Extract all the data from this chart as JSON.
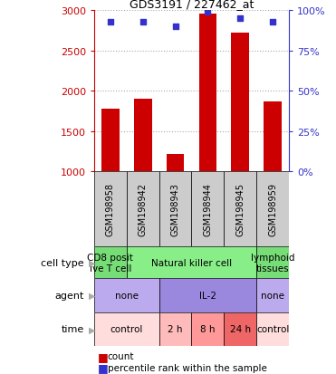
{
  "title": "GDS3191 / 227462_at",
  "samples": [
    "GSM198958",
    "GSM198942",
    "GSM198943",
    "GSM198944",
    "GSM198945",
    "GSM198959"
  ],
  "counts": [
    1780,
    1900,
    1220,
    2960,
    2720,
    1870
  ],
  "percentile_ranks": [
    93,
    93,
    90,
    99,
    95,
    93
  ],
  "ylim_left": [
    1000,
    3000
  ],
  "ylim_right": [
    0,
    100
  ],
  "yticks_left": [
    1000,
    1500,
    2000,
    2500,
    3000
  ],
  "yticks_right": [
    0,
    25,
    50,
    75,
    100
  ],
  "bar_color": "#cc0000",
  "dot_color": "#3333cc",
  "bar_width": 0.55,
  "sample_box_color": "#cccccc",
  "cell_type_row": {
    "cells": [
      {
        "text": "CD8 posit\nive T cell",
        "color": "#77dd77",
        "span": [
          0,
          1
        ]
      },
      {
        "text": "Natural killer cell",
        "color": "#88ee88",
        "span": [
          1,
          5
        ]
      },
      {
        "text": "lymphoid\ntissues",
        "color": "#77dd77",
        "span": [
          5,
          6
        ]
      }
    ]
  },
  "agent_row": {
    "cells": [
      {
        "text": "none",
        "color": "#bbaaee",
        "span": [
          0,
          2
        ]
      },
      {
        "text": "IL-2",
        "color": "#9988dd",
        "span": [
          2,
          5
        ]
      },
      {
        "text": "none",
        "color": "#bbaaee",
        "span": [
          5,
          6
        ]
      }
    ]
  },
  "time_row": {
    "cells": [
      {
        "text": "control",
        "color": "#ffdddd",
        "span": [
          0,
          2
        ]
      },
      {
        "text": "2 h",
        "color": "#ffbbbb",
        "span": [
          2,
          3
        ]
      },
      {
        "text": "8 h",
        "color": "#ff9999",
        "span": [
          3,
          4
        ]
      },
      {
        "text": "24 h",
        "color": "#ee6666",
        "span": [
          4,
          5
        ]
      },
      {
        "text": "control",
        "color": "#ffdddd",
        "span": [
          5,
          6
        ]
      }
    ]
  },
  "row_labels": [
    "cell type",
    "agent",
    "time"
  ],
  "left_axis_color": "#cc0000",
  "right_axis_color": "#3333cc",
  "grid_color": "#aaaaaa",
  "legend_items": [
    {
      "color": "#cc0000",
      "label": "count"
    },
    {
      "color": "#3333cc",
      "label": "percentile rank within the sample"
    }
  ]
}
